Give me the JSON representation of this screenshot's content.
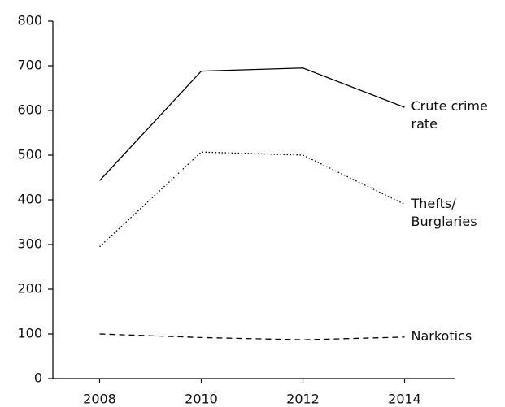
{
  "chart_data": {
    "type": "line",
    "categories": [
      "2008",
      "2010",
      "2012",
      "2014"
    ],
    "series": [
      {
        "name": "Crute crime rate",
        "color": "#000000",
        "style": "solid",
        "values": [
          443,
          688,
          695,
          607
        ]
      },
      {
        "name": "Thefts/ Burglaries",
        "color": "#000000",
        "style": "dotted",
        "values": [
          295,
          507,
          500,
          390
        ]
      },
      {
        "name": "Narkotics",
        "color": "#000000",
        "style": "dashed",
        "values": [
          100,
          92,
          87,
          93
        ]
      }
    ],
    "ylim": [
      0,
      800
    ],
    "yticks": [
      0,
      100,
      200,
      300,
      400,
      500,
      600,
      700,
      800
    ]
  }
}
